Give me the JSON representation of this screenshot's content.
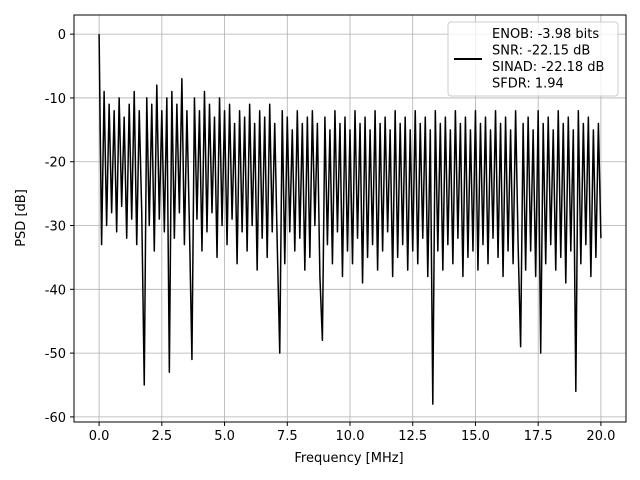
{
  "chart_data": {
    "type": "line",
    "xlabel": "Frequency [MHz]",
    "ylabel": "PSD [dB]",
    "x": [
      0,
      0.1,
      0.2,
      0.3,
      0.4,
      0.5,
      0.6,
      0.7,
      0.8,
      0.9,
      1,
      1.1,
      1.2,
      1.3,
      1.4,
      1.5,
      1.6,
      1.7,
      1.8,
      1.9,
      2,
      2.1,
      2.2,
      2.3,
      2.4,
      2.5,
      2.6,
      2.7,
      2.8,
      2.9,
      3,
      3.1,
      3.2,
      3.3,
      3.4,
      3.5,
      3.6,
      3.7,
      3.8,
      3.9,
      4,
      4.1,
      4.2,
      4.3,
      4.4,
      4.5,
      4.6,
      4.7,
      4.8,
      4.9,
      5,
      5.1,
      5.2,
      5.3,
      5.4,
      5.5,
      5.6,
      5.7,
      5.8,
      5.9,
      6,
      6.1,
      6.2,
      6.3,
      6.4,
      6.5,
      6.6,
      6.7,
      6.8,
      6.9,
      7,
      7.1,
      7.2,
      7.3,
      7.4,
      7.5,
      7.6,
      7.7,
      7.8,
      7.9,
      8,
      8.1,
      8.2,
      8.3,
      8.4,
      8.5,
      8.6,
      8.7,
      8.8,
      8.9,
      9,
      9.1,
      9.2,
      9.3,
      9.4,
      9.5,
      9.6,
      9.7,
      9.8,
      9.9,
      10,
      10.1,
      10.2,
      10.3,
      10.4,
      10.5,
      10.6,
      10.7,
      10.8,
      10.9,
      11,
      11.1,
      11.2,
      11.3,
      11.4,
      11.5,
      11.6,
      11.7,
      11.8,
      11.9,
      12,
      12.1,
      12.2,
      12.3,
      12.4,
      12.5,
      12.6,
      12.7,
      12.8,
      12.9,
      13,
      13.1,
      13.2,
      13.3,
      13.4,
      13.5,
      13.6,
      13.7,
      13.8,
      13.9,
      14,
      14.1,
      14.2,
      14.3,
      14.4,
      14.5,
      14.6,
      14.7,
      14.8,
      14.9,
      15,
      15.1,
      15.2,
      15.3,
      15.4,
      15.5,
      15.6,
      15.7,
      15.8,
      15.9,
      16,
      16.1,
      16.2,
      16.3,
      16.4,
      16.5,
      16.6,
      16.7,
      16.8,
      16.9,
      17,
      17.1,
      17.2,
      17.3,
      17.4,
      17.5,
      17.6,
      17.7,
      17.8,
      17.9,
      18,
      18.1,
      18.2,
      18.3,
      18.4,
      18.5,
      18.6,
      18.7,
      18.8,
      18.9,
      19,
      19.1,
      19.2,
      19.3,
      19.4,
      19.5,
      19.6,
      19.7,
      19.8,
      19.9,
      20
    ],
    "series": [
      {
        "name": "ENOB: -3.98 bits\nSNR: -22.15 dB\nSINAD: -22.18 dB\nSFDR: 1.94",
        "color": "#000000",
        "values": [
          0,
          -33,
          -9,
          -30,
          -11,
          -28,
          -12,
          -31,
          -10,
          -27,
          -13,
          -32,
          -11,
          -29,
          -9,
          -33,
          -12,
          -28,
          -55,
          -10,
          -30,
          -11,
          -34,
          -8,
          -29,
          -12,
          -31,
          -10,
          -53,
          -9,
          -32,
          -11,
          -28,
          -7,
          -33,
          -12,
          -30,
          -51,
          -10,
          -29,
          -12,
          -34,
          -9,
          -31,
          -11,
          -28,
          -13,
          -35,
          -10,
          -30,
          -12,
          -33,
          -11,
          -29,
          -14,
          -36,
          -12,
          -31,
          -13,
          -34,
          -11,
          -30,
          -14,
          -37,
          -12,
          -32,
          -13,
          -35,
          -11,
          -31,
          -14,
          -33,
          -50,
          -12,
          -36,
          -13,
          -31,
          -15,
          -34,
          -12,
          -32,
          -14,
          -37,
          -13,
          -35,
          -12,
          -30,
          -14,
          -38,
          -48,
          -13,
          -33,
          -15,
          -36,
          -12,
          -31,
          -14,
          -38,
          -13,
          -34,
          -15,
          -36,
          -12,
          -32,
          -14,
          -39,
          -13,
          -35,
          -15,
          -33,
          -12,
          -37,
          -14,
          -34,
          -13,
          -31,
          -15,
          -38,
          -12,
          -35,
          -14,
          -33,
          -13,
          -37,
          -15,
          -34,
          -12,
          -36,
          -14,
          -32,
          -13,
          -38,
          -15,
          -58,
          -12,
          -34,
          -14,
          -37,
          -13,
          -33,
          -15,
          -36,
          -12,
          -32,
          -14,
          -38,
          -13,
          -35,
          -15,
          -34,
          -12,
          -37,
          -14,
          -33,
          -13,
          -36,
          -15,
          -32,
          -12,
          -35,
          -14,
          -38,
          -13,
          -34,
          -15,
          -36,
          -12,
          -33,
          -49,
          -14,
          -37,
          -13,
          -34,
          -15,
          -38,
          -12,
          -50,
          -14,
          -36,
          -13,
          -33,
          -15,
          -37,
          -12,
          -35,
          -14,
          -39,
          -13,
          -34,
          -15,
          -56,
          -12,
          -36,
          -14,
          -33,
          -13,
          -38,
          -15,
          -35,
          -14,
          -32
        ]
      }
    ],
    "xlim": [
      -1,
      21
    ],
    "ylim": [
      -60.8,
      3
    ],
    "xticks": [
      {
        "value": 0,
        "label": "0.0"
      },
      {
        "value": 2.5,
        "label": "2.5"
      },
      {
        "value": 5,
        "label": "5.0"
      },
      {
        "value": 7.5,
        "label": "7.5"
      },
      {
        "value": 10,
        "label": "10.0"
      },
      {
        "value": 12.5,
        "label": "12.5"
      },
      {
        "value": 15,
        "label": "15.0"
      },
      {
        "value": 17.5,
        "label": "17.5"
      },
      {
        "value": 20,
        "label": "20.0"
      }
    ],
    "yticks": [
      0,
      -10,
      -20,
      -30,
      -40,
      -50,
      -60
    ],
    "grid": true,
    "legend": "upper right"
  }
}
